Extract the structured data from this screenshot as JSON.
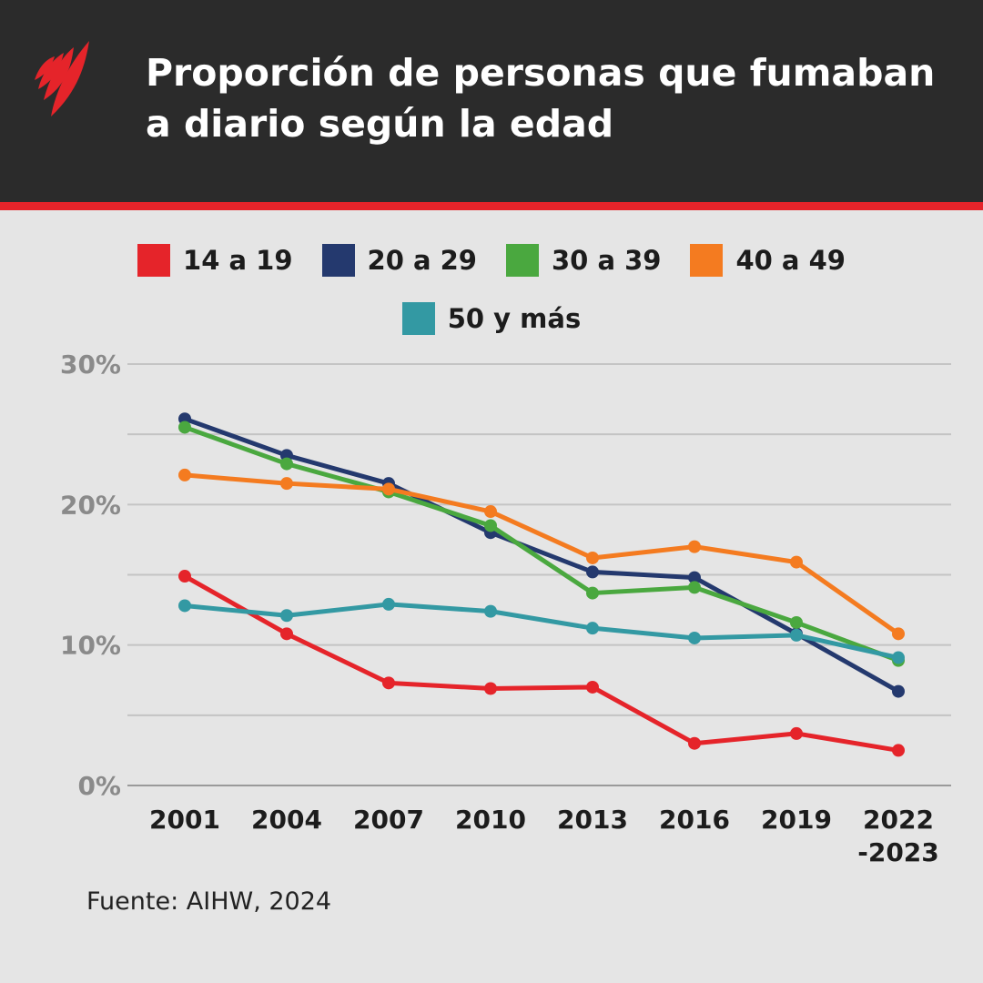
{
  "header": {
    "title": "Proporción de personas que fumaban a diario según la edad",
    "logo": "SBS"
  },
  "colors": {
    "header_bg": "#2b2b2b",
    "accent": "#e5242a"
  },
  "source": "Fuente: AIHW, 2024",
  "chart_data": {
    "type": "line",
    "title": "Proporción de personas que fumaban a diario según la edad",
    "categories": [
      "2001",
      "2004",
      "2007",
      "2010",
      "2013",
      "2016",
      "2019",
      "2022\n-2023"
    ],
    "ylim": [
      0,
      30
    ],
    "yticks": [
      0,
      10,
      20,
      30
    ],
    "ytick_labels": [
      "0%",
      "10%",
      "20%",
      "30%"
    ],
    "grid": true,
    "legend": "top",
    "series": [
      {
        "name": "14 a 19",
        "color": "#e5242a",
        "values": [
          14.9,
          10.8,
          7.3,
          6.9,
          7.0,
          3.0,
          3.7,
          2.5
        ]
      },
      {
        "name": "20 a 29",
        "color": "#24396e",
        "values": [
          26.1,
          23.5,
          21.5,
          18.0,
          15.2,
          14.8,
          10.8,
          6.7
        ]
      },
      {
        "name": "30 a 39",
        "color": "#4aa83f",
        "values": [
          25.5,
          22.9,
          20.9,
          18.5,
          13.7,
          14.1,
          11.6,
          8.9
        ]
      },
      {
        "name": "40 a 49",
        "color": "#f47b20",
        "values": [
          22.1,
          21.5,
          21.1,
          19.5,
          16.2,
          17.0,
          15.9,
          10.8
        ]
      },
      {
        "name": "50 y más",
        "color": "#3399a3",
        "values": [
          12.8,
          12.1,
          12.9,
          12.4,
          11.2,
          10.5,
          10.7,
          9.1
        ]
      }
    ]
  }
}
